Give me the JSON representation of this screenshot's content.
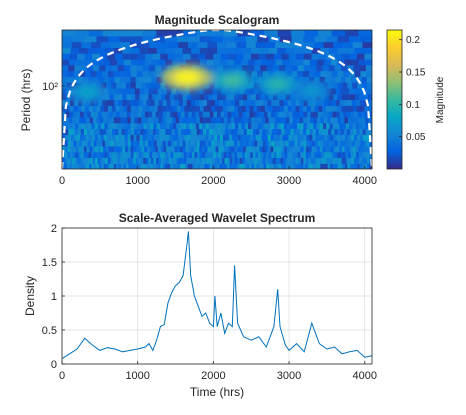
{
  "chart_data": [
    {
      "type": "heatmap",
      "title": "Magnitude Scalogram",
      "xlabel": "",
      "ylabel": "Period (hrs)",
      "xlim": [
        0,
        4096
      ],
      "xticks": [
        0,
        1000,
        2000,
        3000,
        4000
      ],
      "xtick_labels": [
        "0",
        "1000",
        "2000",
        "3000",
        "4000"
      ],
      "yscale": "log",
      "ylim": [
        2,
        1400
      ],
      "yticks": [
        100
      ],
      "ytick_labels": [
        "10²"
      ],
      "colorbar": {
        "label": "Magnitude",
        "range": [
          0,
          0.215
        ],
        "ticks": [
          0.05,
          0.1,
          0.15,
          0.2
        ],
        "tick_labels": [
          "0.05",
          "0.1",
          "0.15",
          "0.2"
        ],
        "colormap": "parula"
      },
      "cone_of_influence": "dashed white line",
      "hotspots": [
        {
          "time": 1650,
          "period": 150,
          "magnitude": 0.21
        },
        {
          "time": 2250,
          "period": 130,
          "magnitude": 0.11
        },
        {
          "time": 2850,
          "period": 110,
          "magnitude": 0.1
        },
        {
          "time": 330,
          "period": 75,
          "magnitude": 0.08
        },
        {
          "time": 3300,
          "period": 80,
          "magnitude": 0.07
        }
      ]
    },
    {
      "type": "line",
      "title": "Scale-Averaged Wavelet Spectrum",
      "xlabel": "Time (hrs)",
      "ylabel": "Density",
      "xlim": [
        0,
        4096
      ],
      "ylim": [
        0,
        2
      ],
      "xticks": [
        0,
        1000,
        2000,
        3000,
        4000
      ],
      "xtick_labels": [
        "0",
        "1000",
        "2000",
        "3000",
        "4000"
      ],
      "yticks": [
        0,
        0.5,
        1,
        1.5,
        2
      ],
      "ytick_labels": [
        "0",
        "0.5",
        "1",
        "1.5",
        "2"
      ],
      "grid": true,
      "color": "#0072BD",
      "x": [
        0,
        100,
        200,
        300,
        400,
        500,
        600,
        700,
        800,
        900,
        1000,
        1100,
        1150,
        1200,
        1250,
        1300,
        1350,
        1400,
        1450,
        1500,
        1550,
        1600,
        1650,
        1670,
        1700,
        1750,
        1800,
        1850,
        1900,
        1950,
        2000,
        2020,
        2050,
        2100,
        2150,
        2200,
        2250,
        2280,
        2320,
        2400,
        2500,
        2600,
        2700,
        2800,
        2850,
        2880,
        2950,
        3000,
        3100,
        3200,
        3300,
        3400,
        3500,
        3600,
        3700,
        3800,
        3900,
        4000,
        4096
      ],
      "y": [
        0.08,
        0.15,
        0.22,
        0.38,
        0.28,
        0.2,
        0.24,
        0.22,
        0.18,
        0.2,
        0.22,
        0.25,
        0.3,
        0.2,
        0.35,
        0.55,
        0.58,
        0.9,
        1.05,
        1.15,
        1.2,
        1.3,
        1.75,
        1.95,
        1.3,
        1.0,
        0.85,
        0.7,
        0.75,
        0.6,
        0.55,
        1.0,
        0.55,
        0.75,
        0.45,
        0.6,
        0.55,
        1.45,
        0.6,
        0.4,
        0.35,
        0.4,
        0.25,
        0.55,
        1.1,
        0.55,
        0.28,
        0.2,
        0.3,
        0.18,
        0.6,
        0.3,
        0.22,
        0.25,
        0.15,
        0.18,
        0.2,
        0.1,
        0.12
      ]
    }
  ]
}
